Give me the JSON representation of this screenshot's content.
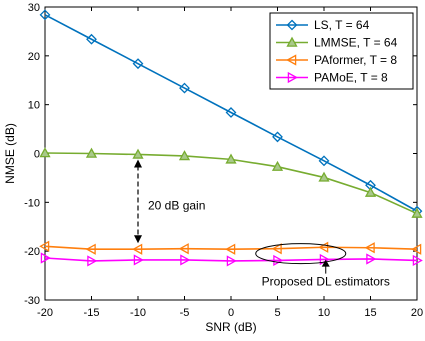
{
  "chart_data": {
    "type": "line",
    "xlabel": "SNR (dB)",
    "ylabel": "NMSE (dB)",
    "xlim": [
      -20,
      20
    ],
    "ylim": [
      -30,
      30
    ],
    "xticks": [
      -20,
      -15,
      -10,
      -5,
      0,
      5,
      10,
      15,
      20
    ],
    "yticks": [
      -30,
      -20,
      -10,
      0,
      10,
      20,
      30
    ],
    "x": [
      -20,
      -15,
      -10,
      -5,
      0,
      5,
      10,
      15,
      20
    ],
    "grid": false,
    "legend_position": "top-right",
    "series": [
      {
        "name": "LS, T = 64",
        "color": "#0072BD",
        "marker": "diamond",
        "values": [
          28.4,
          23.4,
          18.4,
          13.4,
          8.4,
          3.4,
          -1.5,
          -6.5,
          -11.8
        ]
      },
      {
        "name": "LMMSE, T = 64",
        "color": "#77AC30",
        "marker": "triangle-up",
        "values": [
          0.1,
          0.0,
          -0.2,
          -0.5,
          -1.2,
          -2.7,
          -4.9,
          -8.0,
          -12.3
        ]
      },
      {
        "name": "PAformer, T = 8",
        "color": "#FF7F0E",
        "marker": "triangle-left",
        "values": [
          -19.0,
          -19.6,
          -19.6,
          -19.5,
          -19.6,
          -19.5,
          -19.2,
          -19.3,
          -19.6
        ]
      },
      {
        "name": "PAMoE, T = 8",
        "color": "#FF00FF",
        "marker": "triangle-right",
        "values": [
          -21.4,
          -22.0,
          -21.8,
          -21.8,
          -22.0,
          -21.9,
          -21.7,
          -21.6,
          -21.9
        ]
      }
    ],
    "annotations": [
      {
        "text": "20 dB gain",
        "arrow": {
          "x": -10,
          "from_y": 0,
          "to_y": -19.6
        }
      },
      {
        "text": "Proposed DL estimators",
        "ellipse_center": {
          "x": 7.5,
          "y": -20.5
        },
        "arrow": {
          "x": 7.5
        }
      }
    ]
  }
}
